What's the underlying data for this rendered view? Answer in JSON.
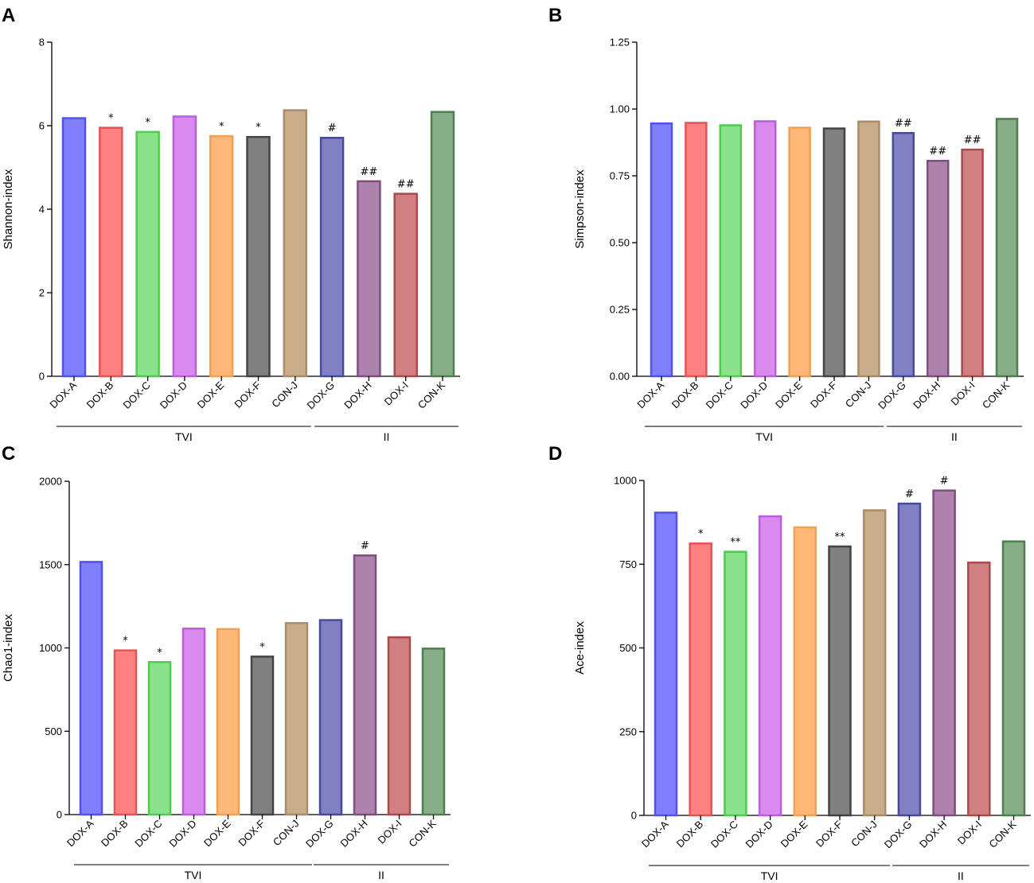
{
  "chart_data": [
    {
      "panel": "A",
      "type": "bar",
      "ylabel": "Shannon-index",
      "ylim": [
        0,
        8
      ],
      "yticks": [
        "0",
        "2",
        "4",
        "6",
        "8"
      ],
      "categories": [
        "DOX-A",
        "DOX-B",
        "DOX-C",
        "DOX-D",
        "DOX-E",
        "DOX-F",
        "CON-J",
        "DOX-G",
        "DOX-H",
        "DOX-I",
        "CON-K"
      ],
      "values": [
        6.18,
        5.95,
        5.85,
        6.22,
        5.75,
        5.73,
        6.37,
        5.71,
        4.67,
        4.37,
        6.33
      ],
      "significance": [
        "",
        "*",
        "*",
        "",
        "*",
        "*",
        "",
        "#",
        "##",
        "##",
        ""
      ],
      "groups": [
        {
          "label": "TVI",
          "from": 0,
          "to": 6
        },
        {
          "label": "II",
          "from": 7,
          "to": 10
        }
      ]
    },
    {
      "panel": "B",
      "type": "bar",
      "ylabel": "Simpson-index",
      "ylim": [
        0,
        1.25
      ],
      "yticks": [
        "0.00",
        "0.25",
        "0.50",
        "0.75",
        "1.00",
        "1.25"
      ],
      "categories": [
        "DOX-A",
        "DOX-B",
        "DOX-C",
        "DOX-D",
        "DOX-E",
        "DOX-F",
        "CON-J",
        "DOX-G",
        "DOX-H",
        "DOX-I",
        "CON-K"
      ],
      "values": [
        0.946,
        0.948,
        0.939,
        0.954,
        0.93,
        0.927,
        0.953,
        0.91,
        0.806,
        0.848,
        0.963
      ],
      "significance": [
        "",
        "",
        "",
        "",
        "",
        "",
        "",
        "##",
        "##",
        "##",
        ""
      ],
      "groups": [
        {
          "label": "TVI",
          "from": 0,
          "to": 6
        },
        {
          "label": "II",
          "from": 7,
          "to": 10
        }
      ]
    },
    {
      "panel": "C",
      "type": "bar",
      "ylabel": "Chao1-index",
      "ylim": [
        0,
        2000
      ],
      "yticks": [
        "0",
        "500",
        "1000",
        "1500",
        "2000"
      ],
      "categories": [
        "DOX-A",
        "DOX-B",
        "DOX-C",
        "DOX-D",
        "DOX-E",
        "DOX-F",
        "CON-J",
        "DOX-G",
        "DOX-H",
        "DOX-I",
        "CON-K"
      ],
      "values": [
        1516,
        985,
        915,
        1116,
        1113,
        948,
        1149,
        1167,
        1555,
        1064,
        996
      ],
      "significance": [
        "",
        "*",
        "*",
        "",
        "",
        "*",
        "",
        "",
        "#",
        "",
        ""
      ],
      "groups": [
        {
          "label": "TVI",
          "from": 0,
          "to": 6
        },
        {
          "label": "II",
          "from": 7,
          "to": 10
        }
      ]
    },
    {
      "panel": "D",
      "type": "bar",
      "ylabel": "Ace-index",
      "ylim": [
        0,
        1000
      ],
      "yticks": [
        "0",
        "250",
        "500",
        "750",
        "1000"
      ],
      "categories": [
        "DOX-A",
        "DOX-B",
        "DOX-C",
        "DOX-D",
        "DOX-E",
        "DOX-F",
        "CON-J",
        "DOX-G",
        "DOX-H",
        "DOX-I",
        "CON-K"
      ],
      "values": [
        904,
        812,
        787,
        893,
        860,
        803,
        911,
        931,
        970,
        755,
        818
      ],
      "significance": [
        "",
        "*",
        "**",
        "",
        "",
        "**",
        "",
        "#",
        "#",
        "",
        ""
      ],
      "groups": [
        {
          "label": "TVI",
          "from": 0,
          "to": 6
        },
        {
          "label": "II",
          "from": 7,
          "to": 10
        }
      ]
    }
  ],
  "colors": {
    "fills": [
      "#8080ff",
      "#ff8080",
      "#8ae28a",
      "#d98aef",
      "#ffb878",
      "#808080",
      "#c9ad8b",
      "#8080c2",
      "#ad82ad",
      "#d08080",
      "#87ae87"
    ],
    "strokes": [
      "#5252e6",
      "#e05555",
      "#4ecb4e",
      "#b95fdb",
      "#f0a050",
      "#444444",
      "#a98d6b",
      "#4a4a9a",
      "#7e4f7e",
      "#aa4a4a",
      "#4f7f4f"
    ]
  }
}
